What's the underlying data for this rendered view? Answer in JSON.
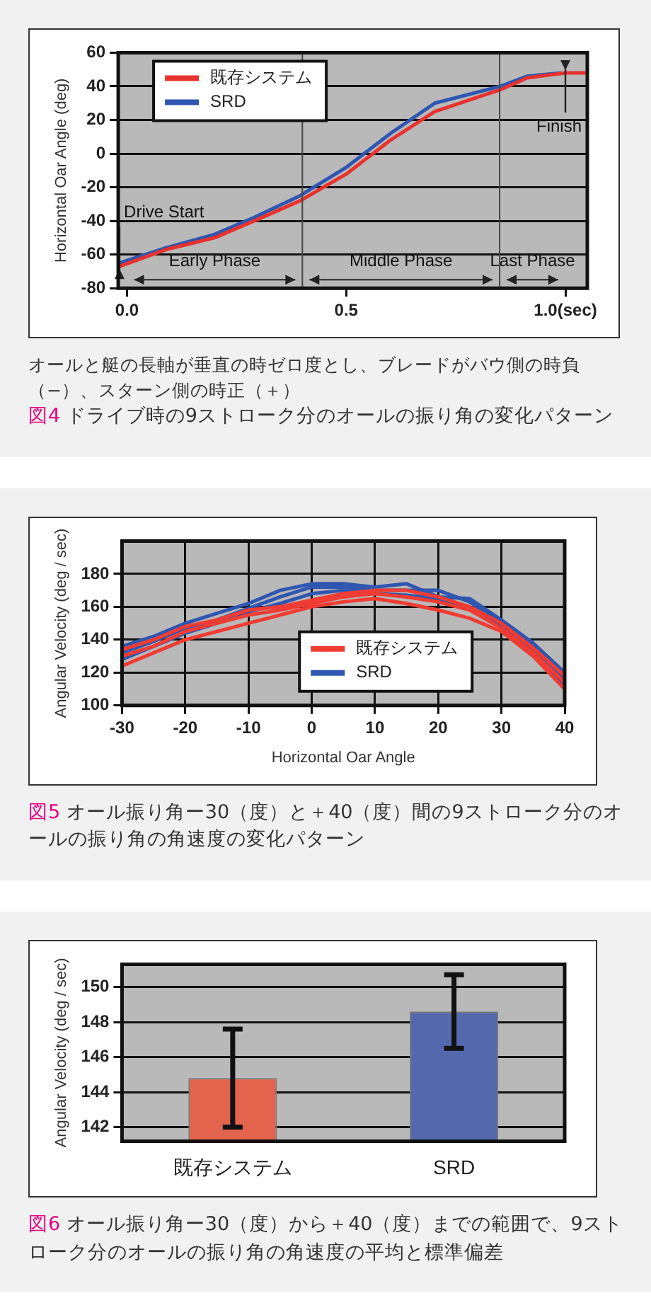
{
  "chart_data": [
    {
      "type": "line",
      "title": "図4 ドライブ時の9ストローク分のオールの振り角の変化パターン",
      "ylabel": "Horizontal Oar Angle (deg)",
      "series": [
        {
          "name": "既存システム",
          "color": "#e8322e",
          "x": [
            -0.017,
            0.089,
            0.2,
            0.29,
            0.395,
            0.501,
            0.601,
            0.702,
            0.852,
            0.913,
            1.0,
            1.047
          ],
          "values": [
            -67,
            -57,
            -50,
            -40,
            -28,
            -12,
            8,
            25,
            38,
            45,
            48,
            48
          ]
        },
        {
          "name": "SRD",
          "color": "#2f56b0",
          "x": [
            -0.017,
            0.089,
            0.2,
            0.29,
            0.395,
            0.501,
            0.601,
            0.702,
            0.852,
            0.913,
            0.991
          ],
          "values": [
            -65,
            -56,
            -48,
            -38,
            -25,
            -8,
            12,
            30,
            40,
            46,
            48
          ]
        }
      ],
      "xlim": [
        -0.02,
        1.05
      ],
      "xticks": [
        {
          "value": 0,
          "label": "0.0"
        },
        0.5,
        {
          "value": 1,
          "label": "1.0(sec)"
        }
      ],
      "ylim": [
        -80,
        60
      ],
      "yticks": [
        -80,
        -60,
        -40,
        -20,
        0,
        20,
        40,
        60
      ],
      "grid": "y",
      "legend": "top left",
      "ref_lines": [
        {
          "axis": "x",
          "value": 0.4
        },
        {
          "axis": "x",
          "value": 0.85
        }
      ],
      "annotations": [
        "オールと艇の長軸が垂直の時ゼロ度とし、ブレードがバウ側の時負（−）、スターン側の時正（＋）",
        "Early Phase",
        "Middle Phase",
        "Last Phase",
        {
          "text": "Drive Start",
          "x": -0.017,
          "y": -67
        },
        {
          "text": "Finish",
          "x": 1.0,
          "y": 48
        }
      ]
    },
    {
      "type": "line",
      "title": "図5 オール振り角ー30（度）と＋40（度）間の9ストローク分のオールの振り角の角速度の変化パターン",
      "xlabel": "Horizontal Oar Angle",
      "ylabel": "Angular Velocity (deg / sec)",
      "x": [
        -30,
        -25,
        -20,
        -15,
        -10,
        -5,
        0,
        5,
        10,
        15,
        20,
        25,
        30,
        35,
        40
      ],
      "series": [
        {
          "name": "既存システム",
          "color": "#f03c32",
          "values": [
            124,
            132,
            140,
            145,
            150,
            155,
            160,
            163,
            165,
            162,
            158,
            153,
            145,
            130,
            110
          ]
        },
        {
          "color": "#f03c32",
          "values": [
            130,
            136,
            145,
            150,
            155,
            158,
            162,
            166,
            168,
            166,
            163,
            158,
            147,
            132,
            114
          ]
        },
        {
          "color": "#f03c32",
          "values": [
            134,
            140,
            148,
            152,
            158,
            160,
            164,
            168,
            170,
            170,
            166,
            160,
            150,
            135,
            118
          ]
        },
        {
          "name": "SRD",
          "color": "#2f56b0",
          "values": [
            128,
            136,
            144,
            150,
            157,
            162,
            168,
            170,
            168,
            167,
            165,
            160,
            148,
            134,
            112
          ]
        },
        {
          "color": "#2f56b0",
          "values": [
            132,
            139,
            147,
            152,
            159,
            166,
            172,
            172,
            170,
            170,
            170,
            163,
            150,
            136,
            116
          ]
        },
        {
          "color": "#2f56b0",
          "values": [
            136,
            142,
            150,
            156,
            162,
            170,
            174,
            174,
            172,
            174,
            166,
            165,
            152,
            138,
            120
          ]
        }
      ],
      "xlim": [
        -30,
        40
      ],
      "xticks": [
        -30,
        -20,
        -10,
        0,
        10,
        20,
        30,
        40
      ],
      "ylim": [
        100,
        200
      ],
      "yticks": [
        100,
        120,
        140,
        160,
        180
      ],
      "grid": true,
      "legend": "bottom"
    },
    {
      "type": "bar",
      "title": "図6 オール振り角ー30（度）から＋40（度）までの範囲で、9ストローク分のオールの振り角の角速度の平均と標準偏差",
      "ylabel": "Angular Velocity (deg / sec)",
      "categories": [
        "既存システム",
        "SRD"
      ],
      "values": [
        144.8,
        148.6
      ],
      "colors": [
        "#e2644c",
        "#5468ae"
      ],
      "errors": [
        2.8,
        2.1
      ],
      "ylim": [
        141.2,
        151.3
      ],
      "yticks": [
        142,
        144,
        146,
        148,
        150
      ],
      "grid": "y"
    }
  ]
}
